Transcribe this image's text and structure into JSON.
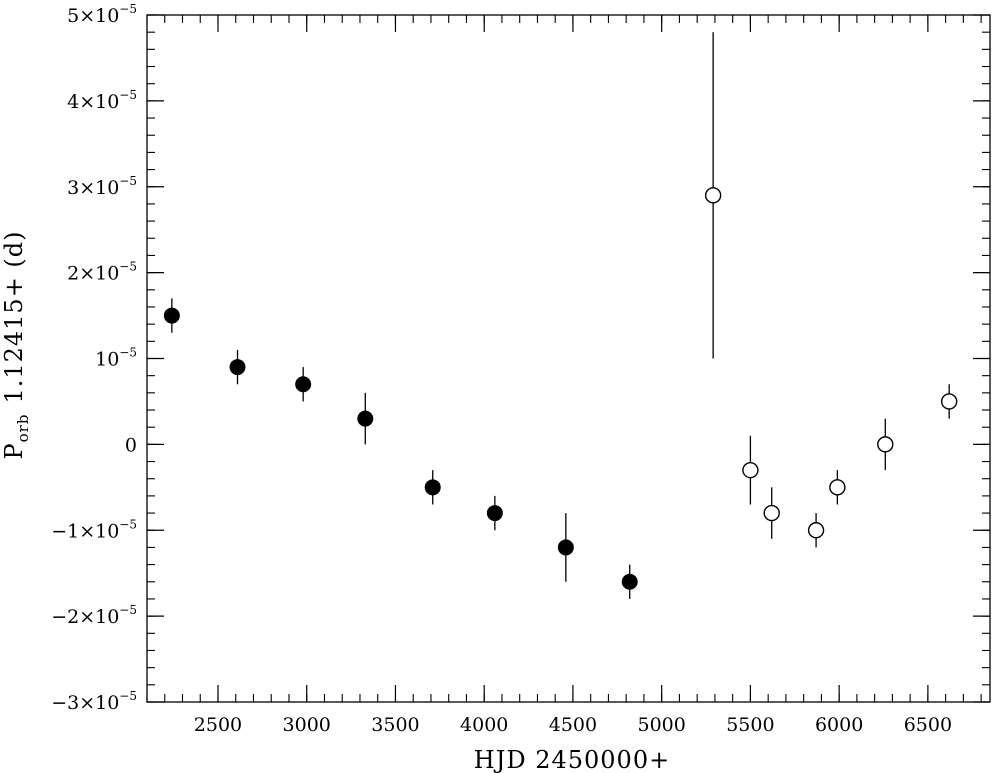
{
  "chart_data": {
    "type": "scatter",
    "title": "",
    "xlabel": "HJD 2450000+",
    "ylabel": {
      "symbol": "P",
      "subscript": "orb",
      "rest": "1.12415+ (d)"
    },
    "xlim": [
      2100,
      6850
    ],
    "ylim": [
      -3e-05,
      5e-05
    ],
    "x_ticks": [
      2500,
      3000,
      3500,
      4000,
      4500,
      5000,
      5500,
      6000,
      6500
    ],
    "x_tick_labels": [
      "2500",
      "3000",
      "3500",
      "4000",
      "4500",
      "5000",
      "5500",
      "6000",
      "6500"
    ],
    "y_ticks": [
      {
        "value": -3e-05,
        "mantissa": "−3×10",
        "exponent": "−5"
      },
      {
        "value": -2e-05,
        "mantissa": "−2×10",
        "exponent": "−5"
      },
      {
        "value": -1e-05,
        "mantissa": "−1×10",
        "exponent": "−5"
      },
      {
        "value": 0,
        "mantissa": "0",
        "exponent": ""
      },
      {
        "value": 1e-05,
        "mantissa": "10",
        "exponent": "−5"
      },
      {
        "value": 2e-05,
        "mantissa": "2×10",
        "exponent": "−5"
      },
      {
        "value": 3e-05,
        "mantissa": "3×10",
        "exponent": "−5"
      },
      {
        "value": 4e-05,
        "mantissa": "4×10",
        "exponent": "−5"
      },
      {
        "value": 5e-05,
        "mantissa": "5×10",
        "exponent": "−5"
      }
    ],
    "x_minor_step": 100,
    "y_minor_step": 2e-06,
    "series": [
      {
        "marker": "filled-circle",
        "points": [
          {
            "x": 2240,
            "y": 1.5e-05,
            "err": 2e-06
          },
          {
            "x": 2610,
            "y": 9e-06,
            "err": 2e-06
          },
          {
            "x": 2980,
            "y": 7e-06,
            "err": 2e-06
          },
          {
            "x": 3330,
            "y": 3e-06,
            "err": 3e-06
          },
          {
            "x": 3710,
            "y": -5e-06,
            "err": 2e-06
          },
          {
            "x": 4060,
            "y": -8e-06,
            "err": 2e-06
          },
          {
            "x": 4460,
            "y": -1.2e-05,
            "err": 4e-06
          },
          {
            "x": 4820,
            "y": -1.6e-05,
            "err": 2e-06
          }
        ]
      },
      {
        "marker": "open-circle",
        "points": [
          {
            "x": 5290,
            "y": 2.9e-05,
            "err": 1.9e-05
          },
          {
            "x": 5500,
            "y": -3e-06,
            "err": 4e-06
          },
          {
            "x": 5620,
            "y": -8e-06,
            "err": 3e-06
          },
          {
            "x": 5870,
            "y": -1e-05,
            "err": 2e-06
          },
          {
            "x": 5990,
            "y": -5e-06,
            "err": 2e-06
          },
          {
            "x": 6260,
            "y": 0.0,
            "err": 3e-06
          },
          {
            "x": 6620,
            "y": 5e-06,
            "err": 2e-06
          }
        ]
      }
    ]
  }
}
